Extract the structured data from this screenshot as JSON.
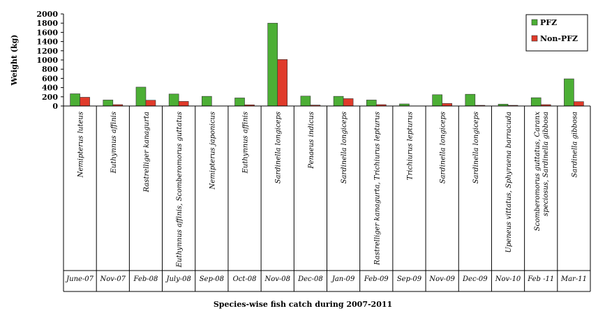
{
  "chart_data": {
    "type": "bar",
    "ylabel": "Weight (kg)",
    "xlabel": "Species-wise fish catch during 2007-2011",
    "ylim": [
      0,
      2000
    ],
    "yticks": [
      "0",
      "200",
      "400",
      "600",
      "800",
      "1000",
      "1200",
      "1400",
      "1600",
      "1800",
      "2000"
    ],
    "legend_position": "top-right",
    "categories": [
      "June-07",
      "Nov-07",
      "Feb-08",
      "July-08",
      "Sep-08",
      "Oct-08",
      "Nov-08",
      "Dec-08",
      "Jan-09",
      "Feb-09",
      "Sep-09",
      "Nov-09",
      "Dec-09",
      "Nov-10",
      "Feb -11",
      "Mar-11"
    ],
    "species": [
      [
        "Nemipterus luteus"
      ],
      [
        "Euthynnus affinis"
      ],
      [
        "Rastrelliger kanagurta"
      ],
      [
        "Euthynnus affinis, Scomberomorus guttatus"
      ],
      [
        "Nemipterus japonicus"
      ],
      [
        "Euthynnus affinis"
      ],
      [
        "Sardinella longiceps"
      ],
      [
        "Penaeus indicus"
      ],
      [
        "Sardinella longiceps"
      ],
      [
        "Rastrelliger kanagurta, Trichiurus lepturus"
      ],
      [
        "Trichiurus lepturus"
      ],
      [
        "Sardinella longiceps"
      ],
      [
        "Sardinella longiceps"
      ],
      [
        "Upeneus vittatus, Sphyraena barracuda"
      ],
      [
        "Scomberomorus guttatus, Caranx",
        "speciosus, Sardinella gibbosa"
      ],
      [
        "Sardinella gibbosa"
      ]
    ],
    "series": [
      {
        "name": "PFZ",
        "color": "#4caf35",
        "values": [
          265,
          130,
          410,
          260,
          210,
          175,
          1800,
          215,
          210,
          130,
          45,
          245,
          255,
          40,
          180,
          590
        ]
      },
      {
        "name": "Non-PFZ",
        "color": "#e03a2a",
        "values": [
          190,
          30,
          125,
          100,
          0,
          25,
          1010,
          20,
          160,
          30,
          0,
          55,
          15,
          15,
          30,
          95
        ]
      }
    ]
  }
}
